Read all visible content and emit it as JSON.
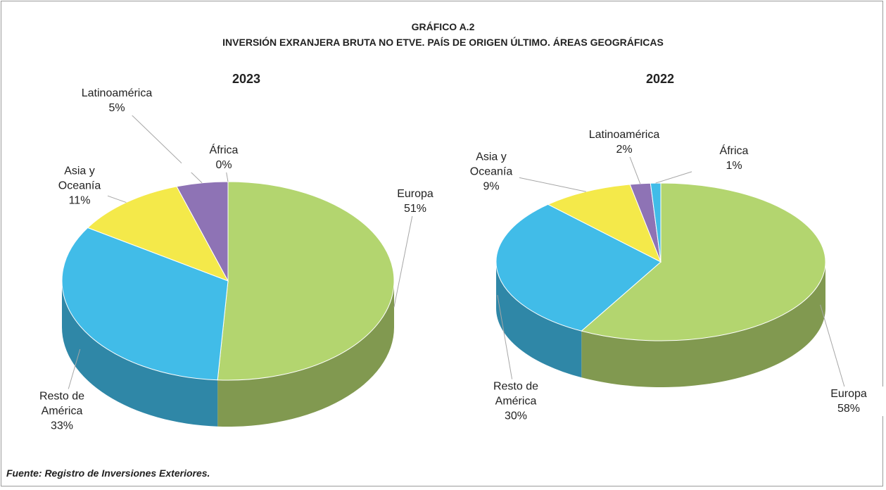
{
  "header": {
    "title": "GRÁFICO A.2",
    "subtitle": "INVERSIÓN EXRANJERA BRUTA NO ETVE. PAÍS DE ORIGEN ÚLTIMO. ÁREAS GEOGRÁFICAS"
  },
  "chart_data": [
    {
      "type": "pie",
      "title": "2023",
      "categories": [
        "Europa",
        "Resto de América",
        "Asia y Oceanía",
        "Latinoamérica",
        "África"
      ],
      "values": [
        51,
        33,
        11,
        5,
        0
      ],
      "value_labels": [
        "51%",
        "33%",
        "11%",
        "5%",
        "0%"
      ],
      "colors": [
        "#b3d56f",
        "#41bce8",
        "#f4e94a",
        "#8e73b5",
        "#41bce8"
      ]
    },
    {
      "type": "pie",
      "title": "2022",
      "categories": [
        "Europa",
        "Resto de América",
        "Asia y Oceanía",
        "Latinoamérica",
        "África"
      ],
      "values": [
        58,
        30,
        9,
        2,
        1
      ],
      "value_labels": [
        "58%",
        "30%",
        "9%",
        "2%",
        "1%"
      ],
      "colors": [
        "#b3d56f",
        "#41bce8",
        "#f4e94a",
        "#8e73b5",
        "#41bce8"
      ]
    }
  ],
  "footer": {
    "source": "Fuente: Registro de Inversiones Exteriores."
  }
}
